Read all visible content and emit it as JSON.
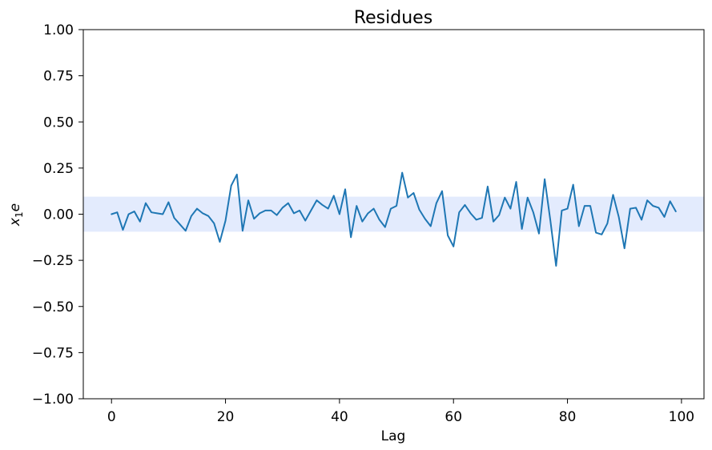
{
  "chart_data": {
    "type": "line",
    "title": "Residues",
    "xlabel": "Lag",
    "ylabel_main": "x",
    "ylabel_sub": "1",
    "ylabel_tail": "e",
    "xlim": [
      -4.95,
      103.95
    ],
    "ylim": [
      -1.0,
      1.0
    ],
    "xticks": [
      0,
      20,
      40,
      60,
      80,
      100
    ],
    "xtick_labels": [
      "0",
      "20",
      "40",
      "60",
      "80",
      "100"
    ],
    "yticks": [
      -1.0,
      -0.75,
      -0.5,
      -0.25,
      0.0,
      0.25,
      0.5,
      0.75,
      1.0
    ],
    "ytick_labels": [
      "−1.00",
      "−0.75",
      "−0.50",
      "−0.25",
      "0.00",
      "0.25",
      "0.50",
      "0.75",
      "1.00"
    ],
    "grid": false,
    "confidence_band": {
      "lower": -0.095,
      "upper": 0.095,
      "color": "#e3ebfd"
    },
    "series": [
      {
        "color": "#1f77b4",
        "x": [
          0,
          1,
          2,
          3,
          4,
          5,
          6,
          7,
          8,
          9,
          10,
          11,
          12,
          13,
          14,
          15,
          16,
          17,
          18,
          19,
          20,
          21,
          22,
          23,
          24,
          25,
          26,
          27,
          28,
          29,
          30,
          31,
          32,
          33,
          34,
          35,
          36,
          37,
          38,
          39,
          40,
          41,
          42,
          43,
          44,
          45,
          46,
          47,
          48,
          49,
          50,
          51,
          52,
          53,
          54,
          55,
          56,
          57,
          58,
          59,
          60,
          61,
          62,
          63,
          64,
          65,
          66,
          67,
          68,
          69,
          70,
          71,
          72,
          73,
          74,
          75,
          76,
          77,
          78,
          79,
          80,
          81,
          82,
          83,
          84,
          85,
          86,
          87,
          88,
          89,
          90,
          91,
          92,
          93,
          94,
          95,
          96,
          97,
          98,
          99
        ],
        "values": [
          0.0,
          0.01,
          -0.085,
          0.0,
          0.015,
          -0.04,
          0.06,
          0.01,
          0.005,
          0.0,
          0.065,
          -0.02,
          -0.055,
          -0.09,
          -0.01,
          0.03,
          0.005,
          -0.01,
          -0.05,
          -0.15,
          -0.035,
          0.155,
          0.215,
          -0.09,
          0.075,
          -0.025,
          0.005,
          0.02,
          0.02,
          -0.005,
          0.035,
          0.06,
          0.005,
          0.02,
          -0.035,
          0.02,
          0.075,
          0.05,
          0.03,
          0.1,
          0.0,
          0.135,
          -0.125,
          0.045,
          -0.04,
          0.005,
          0.03,
          -0.03,
          -0.07,
          0.03,
          0.045,
          0.225,
          0.09,
          0.115,
          0.025,
          -0.025,
          -0.065,
          0.06,
          0.125,
          -0.115,
          -0.175,
          0.01,
          0.05,
          0.005,
          -0.03,
          -0.02,
          0.15,
          -0.04,
          -0.005,
          0.09,
          0.03,
          0.175,
          -0.08,
          0.09,
          0.01,
          -0.105,
          0.19,
          -0.035,
          -0.28,
          0.02,
          0.03,
          0.16,
          -0.065,
          0.045,
          0.045,
          -0.1,
          -0.11,
          -0.05,
          0.105,
          -0.015,
          -0.185,
          0.03,
          0.035,
          -0.03,
          0.075,
          0.045,
          0.035,
          -0.015,
          0.07,
          0.015
        ]
      }
    ]
  }
}
